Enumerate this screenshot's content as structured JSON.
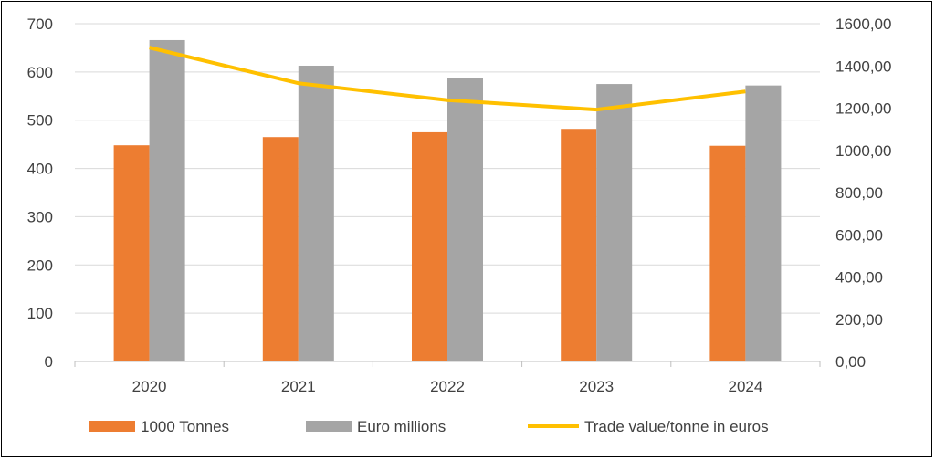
{
  "chart_data": {
    "type": "bar+line",
    "categories": [
      "2020",
      "2021",
      "2022",
      "2023",
      "2024"
    ],
    "series": [
      {
        "name": "1000 Tonnes",
        "type": "bar",
        "axis": "left",
        "color": "#ED7D31",
        "values": [
          448,
          465,
          475,
          482,
          447
        ]
      },
      {
        "name": "Euro millions",
        "type": "bar",
        "axis": "left",
        "color": "#A5A5A5",
        "values": [
          666,
          613,
          588,
          575,
          572
        ]
      },
      {
        "name": "Trade value/tonne in euros",
        "type": "line",
        "axis": "right",
        "color": "#FFC000",
        "values": [
          1487,
          1318,
          1238,
          1193,
          1279
        ]
      }
    ],
    "y_left": {
      "min": 0,
      "max": 700,
      "ticks": [
        "0",
        "100",
        "200",
        "300",
        "400",
        "500",
        "600",
        "700"
      ]
    },
    "y_right": {
      "min": 0,
      "max": 1600,
      "ticks": [
        "0,00",
        "200,00",
        "400,00",
        "600,00",
        "800,00",
        "1000,00",
        "1200,00",
        "1400,00",
        "1600,00"
      ]
    },
    "grid": true,
    "legend": "bottom"
  }
}
